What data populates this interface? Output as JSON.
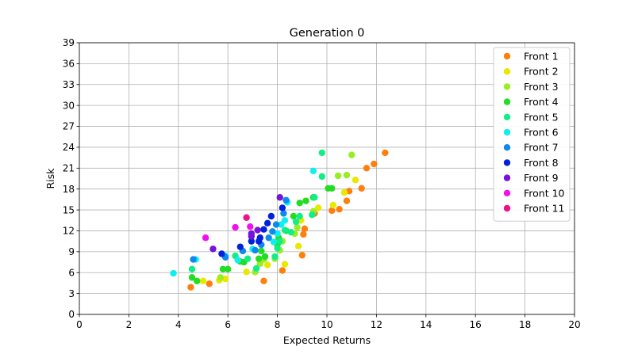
{
  "chart_data": {
    "type": "scatter",
    "title": "Generation 0",
    "xlabel": "Expected Returns",
    "ylabel": "Risk",
    "xlim": [
      0,
      20
    ],
    "ylim": [
      0,
      39
    ],
    "xticks": [
      0,
      2,
      4,
      6,
      8,
      10,
      12,
      14,
      16,
      18,
      20
    ],
    "yticks": [
      0,
      3,
      6,
      9,
      12,
      15,
      18,
      21,
      24,
      27,
      30,
      33,
      36,
      39
    ],
    "grid": true,
    "legend_position": "top-right",
    "series": [
      {
        "name": "Front 1",
        "color": "#ff7f0e",
        "points": [
          [
            4.5,
            3.9
          ],
          [
            5.25,
            4.4
          ],
          [
            7.45,
            4.8
          ],
          [
            8.2,
            6.3
          ],
          [
            9.0,
            8.5
          ],
          [
            9.05,
            11.5
          ],
          [
            9.1,
            12.3
          ],
          [
            9.5,
            14.5
          ],
          [
            10.2,
            14.9
          ],
          [
            10.5,
            15.1
          ],
          [
            10.8,
            16.3
          ],
          [
            10.9,
            17.7
          ],
          [
            11.4,
            18.1
          ],
          [
            11.6,
            21.0
          ],
          [
            11.9,
            21.6
          ],
          [
            12.35,
            23.2
          ]
        ]
      },
      {
        "name": "Front 2",
        "color": "#e8e800",
        "points": [
          [
            4.75,
            4.8
          ],
          [
            5.0,
            4.8
          ],
          [
            5.65,
            4.9
          ],
          [
            5.9,
            5.1
          ],
          [
            6.75,
            6.1
          ],
          [
            7.6,
            7.1
          ],
          [
            8.3,
            7.2
          ],
          [
            8.85,
            9.8
          ],
          [
            8.95,
            13.5
          ],
          [
            9.65,
            15.3
          ],
          [
            10.25,
            15.7
          ],
          [
            10.7,
            17.5
          ],
          [
            11.15,
            19.3
          ]
        ]
      },
      {
        "name": "Front 3",
        "color": "#99ee22",
        "points": [
          [
            5.7,
            5.3
          ],
          [
            7.1,
            6.1
          ],
          [
            7.3,
            7.3
          ],
          [
            7.45,
            7.9
          ],
          [
            7.9,
            8.0
          ],
          [
            8.1,
            9.2
          ],
          [
            8.2,
            10.5
          ],
          [
            8.7,
            11.6
          ],
          [
            8.8,
            12.5
          ],
          [
            9.45,
            14.8
          ],
          [
            10.45,
            19.9
          ],
          [
            10.8,
            20.0
          ],
          [
            11.0,
            22.9
          ]
        ]
      },
      {
        "name": "Front 4",
        "color": "#22dd22",
        "points": [
          [
            4.55,
            5.3
          ],
          [
            4.75,
            4.8
          ],
          [
            5.8,
            6.5
          ],
          [
            6.0,
            6.5
          ],
          [
            6.5,
            7.6
          ],
          [
            6.65,
            7.5
          ],
          [
            7.25,
            8.0
          ],
          [
            7.35,
            9.1
          ],
          [
            7.5,
            8.3
          ],
          [
            8.0,
            10.0
          ],
          [
            8.05,
            11.0
          ],
          [
            8.35,
            12.0
          ],
          [
            8.65,
            14.1
          ],
          [
            8.9,
            16.0
          ],
          [
            9.15,
            16.3
          ],
          [
            9.45,
            16.8
          ],
          [
            10.05,
            18.1
          ],
          [
            10.2,
            18.1
          ]
        ]
      },
      {
        "name": "Front 5",
        "color": "#11ee88",
        "points": [
          [
            4.55,
            6.5
          ],
          [
            6.3,
            8.4
          ],
          [
            6.8,
            8.0
          ],
          [
            7.15,
            6.6
          ],
          [
            7.9,
            8.3
          ],
          [
            8.0,
            9.5
          ],
          [
            8.1,
            10.5
          ],
          [
            8.3,
            12.1
          ],
          [
            8.55,
            11.8
          ],
          [
            8.75,
            13.3
          ],
          [
            8.9,
            14.1
          ],
          [
            9.4,
            14.3
          ],
          [
            9.5,
            16.8
          ],
          [
            9.8,
            19.8
          ],
          [
            9.8,
            23.2
          ]
        ]
      },
      {
        "name": "Front 6",
        "color": "#11eeee",
        "points": [
          [
            3.8,
            5.9
          ],
          [
            4.7,
            7.9
          ],
          [
            5.9,
            8.4
          ],
          [
            6.4,
            7.8
          ],
          [
            7.0,
            9.4
          ],
          [
            7.85,
            10.4
          ],
          [
            8.0,
            11.6
          ],
          [
            8.15,
            12.9
          ],
          [
            8.3,
            13.5
          ],
          [
            8.4,
            16.1
          ],
          [
            9.45,
            20.6
          ]
        ]
      },
      {
        "name": "Front 7",
        "color": "#1188ee",
        "points": [
          [
            4.6,
            7.9
          ],
          [
            5.9,
            8.2
          ],
          [
            6.6,
            9.1
          ],
          [
            7.1,
            9.2
          ],
          [
            7.35,
            10.0
          ],
          [
            7.65,
            11.0
          ],
          [
            7.8,
            11.9
          ],
          [
            7.95,
            12.9
          ],
          [
            8.25,
            14.5
          ],
          [
            8.35,
            16.4
          ]
        ]
      },
      {
        "name": "Front 8",
        "color": "#0022dd",
        "points": [
          [
            5.75,
            8.7
          ],
          [
            6.5,
            9.7
          ],
          [
            6.95,
            10.5
          ],
          [
            7.25,
            10.5
          ],
          [
            7.3,
            11.0
          ],
          [
            7.45,
            12.2
          ],
          [
            7.6,
            13.1
          ],
          [
            7.75,
            14.1
          ],
          [
            8.2,
            15.3
          ]
        ]
      },
      {
        "name": "Front 9",
        "color": "#7711dd",
        "points": [
          [
            5.4,
            9.4
          ],
          [
            6.95,
            11.2
          ],
          [
            6.95,
            11.6
          ],
          [
            7.2,
            12.1
          ],
          [
            8.1,
            16.8
          ]
        ]
      },
      {
        "name": "Front 10",
        "color": "#ee11ee",
        "points": [
          [
            5.1,
            11.0
          ],
          [
            6.3,
            12.5
          ],
          [
            6.9,
            12.6
          ]
        ]
      },
      {
        "name": "Front 11",
        "color": "#ee1188",
        "points": [
          [
            6.75,
            13.9
          ]
        ]
      }
    ]
  }
}
